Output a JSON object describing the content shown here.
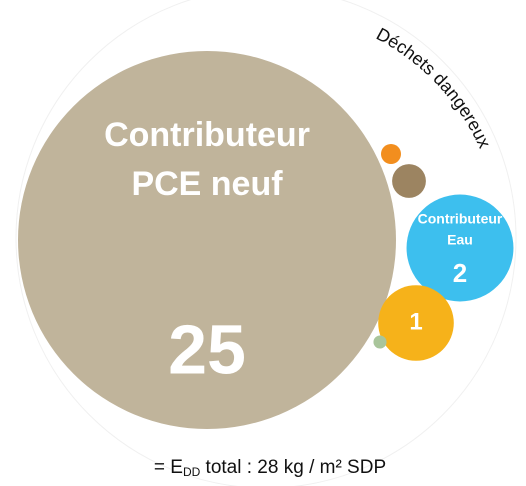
{
  "chart_data": {
    "type": "bubble",
    "annotation": "Déchets dangereux",
    "footnote": {
      "prefix": "= E",
      "subscript": "DD",
      "suffix": " total : 28 kg / m² SDP"
    },
    "series": [
      {
        "name_lines": [
          "Contributeur",
          "PCE neuf"
        ],
        "value": 25,
        "color": "#c0b49b"
      },
      {
        "name_lines": [
          "Contributeur",
          "Eau"
        ],
        "value": 2,
        "color": "#3dbfee"
      },
      {
        "name_lines": null,
        "value": 1,
        "color": "#f6b21a"
      },
      {
        "name_lines": null,
        "value": 0.2,
        "color": "#9c8461"
      },
      {
        "name_lines": null,
        "value": 0.07,
        "color": "#f28e1e"
      },
      {
        "name_lines": null,
        "value": 0.03,
        "color": "#a9c59b"
      }
    ]
  }
}
